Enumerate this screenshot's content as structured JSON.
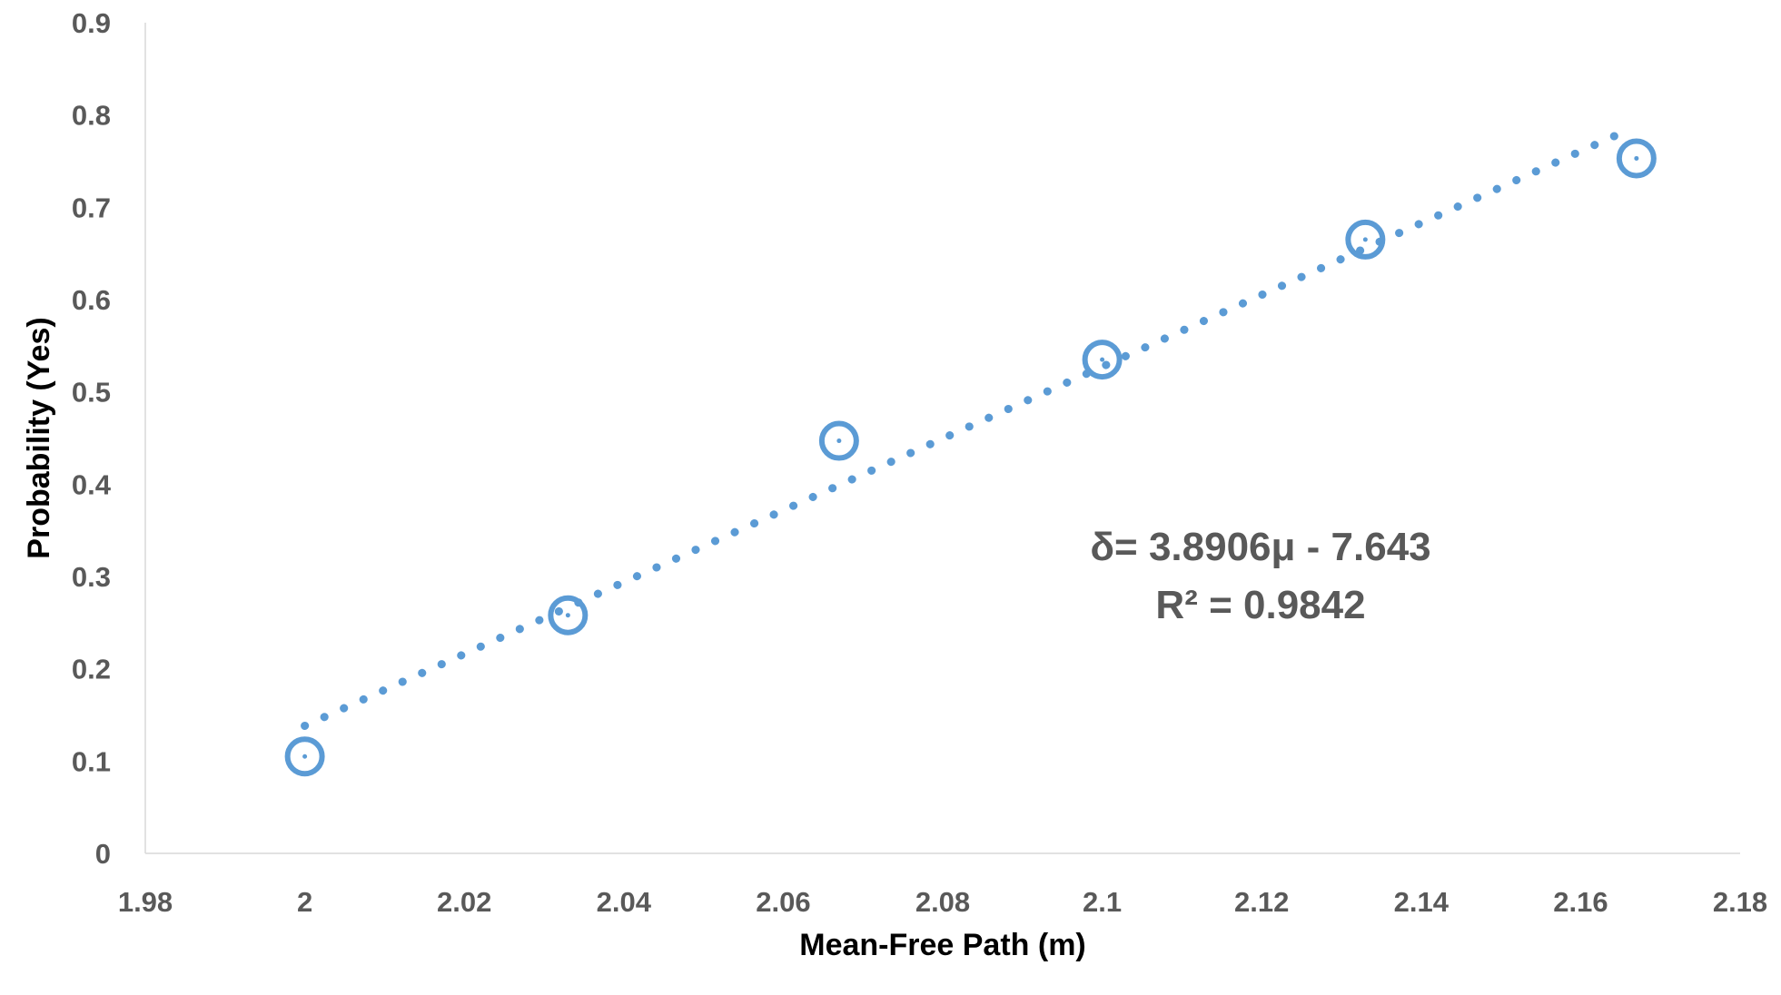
{
  "chart_data": {
    "type": "scatter",
    "xlabel": "Mean-Free Path (m)",
    "ylabel": "Probability (Yes)",
    "xlim": [
      1.98,
      2.18
    ],
    "ylim": [
      0,
      0.9
    ],
    "x_ticks": [
      "1.98",
      "2",
      "2.02",
      "2.04",
      "2.06",
      "2.08",
      "2.1",
      "2.12",
      "2.14",
      "2.16",
      "2.18"
    ],
    "y_ticks": [
      "0",
      "0.1",
      "0.2",
      "0.3",
      "0.4",
      "0.5",
      "0.6",
      "0.7",
      "0.8",
      "0.9"
    ],
    "grid": false,
    "series": [
      {
        "x": [
          2.0,
          2.033,
          2.067,
          2.1,
          2.133,
          2.167
        ],
        "y": [
          0.105,
          0.258,
          0.447,
          0.535,
          0.665,
          0.753
        ]
      }
    ],
    "trendline": {
      "type": "linear",
      "style": "dotted",
      "slope": 3.8906,
      "intercept": -7.643,
      "x_range": [
        2.0,
        2.165
      ]
    },
    "annotation": {
      "equation": "δ= 3.8906μ - 7.643",
      "r_squared": "R² = 0.9842"
    },
    "colors": {
      "series": "#5b9bd5",
      "axis_text": "#595959",
      "axis_line": "#d9d9d9",
      "label_text": "#000000"
    }
  }
}
